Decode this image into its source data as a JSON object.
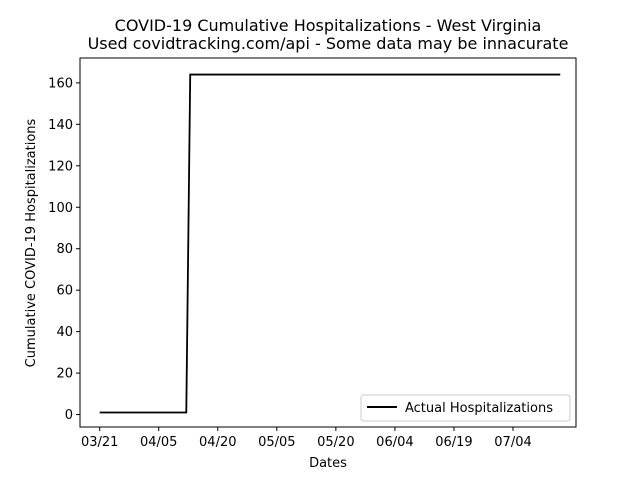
{
  "chart_data": {
    "type": "line",
    "title": "COVID-19 Cumulative Hospitalizations - West Virginia",
    "subtitle": "Used covidtracking.com/api - Some data may be innacurate",
    "xlabel": "Dates",
    "ylabel": "Cumulative COVID-19 Hospitalizations",
    "xticks": [
      "03/21",
      "04/05",
      "04/20",
      "05/05",
      "05/20",
      "06/04",
      "06/19",
      "07/04"
    ],
    "yticks": [
      0,
      20,
      40,
      60,
      80,
      100,
      120,
      140,
      160
    ],
    "xlim": [
      "03/16",
      "07/20"
    ],
    "ylim": [
      -6,
      172
    ],
    "grid": false,
    "legend_position": "lower-right",
    "series": [
      {
        "name": "Actual Hospitalizations",
        "color": "#000000",
        "x": [
          "03/21",
          "04/12",
          "04/13",
          "07/16"
        ],
        "y": [
          1,
          1,
          164,
          164
        ]
      }
    ]
  }
}
